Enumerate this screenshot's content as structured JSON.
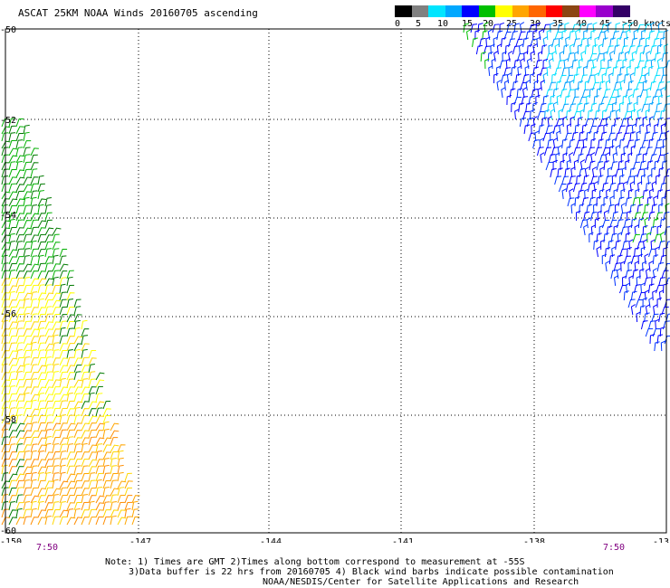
{
  "title": "ASCAT 25KM NOAA Winds 20160705 ascending",
  "colorbar": {
    "colors": [
      "#000000",
      "#808080",
      "#00e5ff",
      "#00a8ff",
      "#0000ff",
      "#00c000",
      "#ffff00",
      "#ffa500",
      "#ff6600",
      "#ff0000",
      "#8b4513",
      "#ff00ff",
      "#9900cc",
      "#330066"
    ],
    "labels": [
      "0",
      "5",
      "10",
      "15",
      "20",
      "25",
      "30",
      "35",
      "40",
      "45",
      ">50 knots"
    ]
  },
  "axes": {
    "x_ticks": [
      "-150",
      "-147",
      "-144",
      "-141",
      "-138",
      "-13"
    ],
    "y_ticks": [
      "-50",
      "-52",
      "-54",
      "-56",
      "-58",
      "-60"
    ]
  },
  "times": {
    "left": "7:50",
    "right": "7:50"
  },
  "notes": {
    "line1": "Note: 1) Times are GMT 2)Times along bottom correspond to measurement at -55S",
    "line2": "3)Data buffer is 22 hrs from 20160705 4) Black wind barbs indicate possible contamination",
    "line3": "NOAA/NESDIS/Center for Satellite Applications and Research"
  },
  "swaths": {
    "west": {
      "colors": [
        "#00b000",
        "#007a00",
        "#ffff00",
        "#ffd700",
        "#ffa500",
        "#ff8c00"
      ]
    },
    "east": {
      "colors": [
        "#0000ff",
        "#0033ff",
        "#00a0ff",
        "#00e0ff",
        "#000000",
        "#00c000"
      ]
    }
  }
}
